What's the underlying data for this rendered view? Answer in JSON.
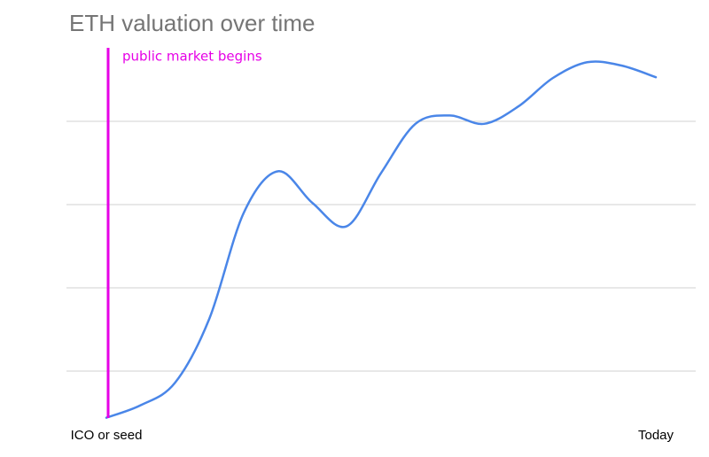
{
  "chart_data": {
    "type": "line",
    "title": "ETH valuation over time",
    "annotation": "public market begins",
    "categories": [
      "ICO or seed",
      null,
      null,
      null,
      null,
      null,
      null,
      null,
      null,
      null,
      null,
      null,
      null,
      null,
      null,
      null,
      "Today"
    ],
    "series": [
      {
        "color": "#4a86e8",
        "values": [
          0.44,
          0.59,
          0.86,
          1.63,
          2.9,
          3.4,
          3.02,
          2.74,
          3.38,
          3.97,
          4.07,
          3.97,
          4.18,
          4.52,
          4.71,
          4.67,
          4.53
        ]
      }
    ],
    "ylim": [
      0,
      5
    ],
    "yticks": [
      1,
      2,
      3,
      4
    ],
    "grid": true
  }
}
